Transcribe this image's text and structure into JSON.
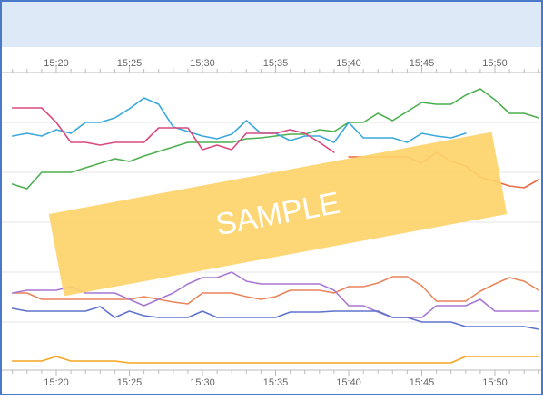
{
  "chart_data": {
    "type": "line",
    "title": "",
    "xlabel": "",
    "ylabel": "",
    "x_tick_labels": [
      "15:20",
      "15:25",
      "15:30",
      "15:35",
      "15:40",
      "15:45",
      "15:50"
    ],
    "x_range": [
      "15:17",
      "15:53"
    ],
    "grid": true,
    "legend": "none",
    "watermark": {
      "text": "SAMPLE",
      "color": "#fdd36a"
    },
    "colors": {
      "header_band": "#dde9f6",
      "frame": "#4a79c9",
      "grid": "#e6e6e6",
      "axis": "#bbbbbb",
      "tick_text": "#666666"
    },
    "series": [
      {
        "color": "#4caf50",
        "points": [
          [
            "15:17",
            203
          ],
          [
            "15:18",
            208
          ],
          [
            "15:19",
            190
          ],
          [
            "15:20",
            190
          ],
          [
            "15:21",
            190
          ],
          [
            "15:22",
            185
          ],
          [
            "15:23",
            180
          ],
          [
            "15:24",
            175
          ],
          [
            "15:25",
            178
          ],
          [
            "15:26",
            172
          ],
          [
            "15:27",
            167
          ],
          [
            "15:28",
            162
          ],
          [
            "15:29",
            157
          ],
          [
            "15:30",
            157
          ],
          [
            "15:31",
            157
          ],
          [
            "15:32",
            157
          ],
          [
            "15:33",
            153
          ],
          [
            "15:34",
            152
          ],
          [
            "15:35",
            150
          ],
          [
            "15:36",
            148
          ],
          [
            "15:37",
            148
          ],
          [
            "15:38",
            143
          ],
          [
            "15:39",
            145
          ],
          [
            "15:40",
            135
          ],
          [
            "15:41",
            135
          ],
          [
            "15:42",
            125
          ],
          [
            "15:43",
            133
          ],
          [
            "15:44",
            123
          ],
          [
            "15:45",
            113
          ],
          [
            "15:46",
            115
          ],
          [
            "15:47",
            115
          ],
          [
            "15:48",
            105
          ],
          [
            "15:49",
            98
          ],
          [
            "15:50",
            110
          ],
          [
            "15:51",
            125
          ],
          [
            "15:52",
            125
          ],
          [
            "15:53",
            130
          ]
        ]
      },
      {
        "color": "#3aa8dc",
        "points": [
          [
            "15:17",
            150
          ],
          [
            "15:18",
            147
          ],
          [
            "15:19",
            150
          ],
          [
            "15:20",
            143
          ],
          [
            "15:21",
            147
          ],
          [
            "15:22",
            135
          ],
          [
            "15:23",
            135
          ],
          [
            "15:24",
            130
          ],
          [
            "15:25",
            120
          ],
          [
            "15:26",
            108
          ],
          [
            "15:27",
            115
          ],
          [
            "15:28",
            140
          ],
          [
            "15:29",
            145
          ],
          [
            "15:30",
            150
          ],
          [
            "15:31",
            153
          ],
          [
            "15:32",
            148
          ],
          [
            "15:33",
            133
          ],
          [
            "15:34",
            147
          ],
          [
            "15:35",
            147
          ],
          [
            "15:36",
            155
          ],
          [
            "15:37",
            150
          ],
          [
            "15:38",
            150
          ],
          [
            "15:39",
            157
          ],
          [
            "15:40",
            135
          ],
          [
            "15:41",
            152
          ],
          [
            "15:42",
            152
          ],
          [
            "15:43",
            152
          ],
          [
            "15:44",
            157
          ],
          [
            "15:45",
            147
          ],
          [
            "15:46",
            150
          ],
          [
            "15:47",
            152
          ],
          [
            "15:48",
            147
          ]
        ]
      },
      {
        "color": "#d94a80",
        "points": [
          [
            "15:17",
            119
          ],
          [
            "15:18",
            119
          ],
          [
            "15:19",
            119
          ],
          [
            "15:20",
            135
          ],
          [
            "15:21",
            157
          ],
          [
            "15:22",
            157
          ],
          [
            "15:23",
            160
          ],
          [
            "15:24",
            157
          ],
          [
            "15:25",
            157
          ],
          [
            "15:26",
            157
          ],
          [
            "15:27",
            141
          ],
          [
            "15:28",
            141
          ],
          [
            "15:29",
            141
          ],
          [
            "15:30",
            165
          ],
          [
            "15:31",
            160
          ],
          [
            "15:32",
            165
          ],
          [
            "15:33",
            147
          ],
          [
            "15:34",
            147
          ],
          [
            "15:35",
            147
          ],
          [
            "15:36",
            143
          ],
          [
            "15:37",
            147
          ],
          [
            "15:38",
            157
          ],
          [
            "15:39",
            168
          ]
        ]
      },
      {
        "color": "#e86a46",
        "points": [
          [
            "15:40",
            173
          ],
          [
            "15:41",
            173
          ],
          [
            "15:42",
            173
          ],
          [
            "15:43",
            173
          ],
          [
            "15:44",
            173
          ],
          [
            "15:45",
            180
          ],
          [
            "15:46",
            168
          ],
          [
            "15:47",
            178
          ],
          [
            "15:48",
            183
          ],
          [
            "15:49",
            195
          ],
          [
            "15:50",
            200
          ],
          [
            "15:51",
            205
          ],
          [
            "15:52",
            207
          ],
          [
            "15:53",
            198
          ]
        ]
      },
      {
        "color": "#e8845a",
        "points": [
          [
            "15:17",
            323
          ],
          [
            "15:18",
            323
          ],
          [
            "15:19",
            330
          ],
          [
            "15:20",
            330
          ],
          [
            "15:21",
            330
          ],
          [
            "15:22",
            330
          ],
          [
            "15:23",
            330
          ],
          [
            "15:24",
            330
          ],
          [
            "15:25",
            330
          ],
          [
            "15:26",
            327
          ],
          [
            "15:27",
            330
          ],
          [
            "15:28",
            333
          ],
          [
            "15:29",
            335
          ],
          [
            "15:30",
            323
          ],
          [
            "15:31",
            323
          ],
          [
            "15:32",
            323
          ],
          [
            "15:33",
            327
          ],
          [
            "15:34",
            330
          ],
          [
            "15:35",
            327
          ],
          [
            "15:36",
            320
          ],
          [
            "15:37",
            320
          ],
          [
            "15:38",
            320
          ],
          [
            "15:39",
            323
          ],
          [
            "15:40",
            316
          ],
          [
            "15:41",
            316
          ],
          [
            "15:42",
            312
          ],
          [
            "15:43",
            305
          ],
          [
            "15:44",
            305
          ],
          [
            "15:45",
            315
          ],
          [
            "15:46",
            332
          ],
          [
            "15:47",
            332
          ],
          [
            "15:48",
            332
          ],
          [
            "15:49",
            321
          ],
          [
            "15:50",
            313
          ],
          [
            "15:51",
            306
          ],
          [
            "15:52",
            310
          ],
          [
            "15:53",
            320
          ]
        ]
      },
      {
        "color": "#a777d2",
        "points": [
          [
            "15:17",
            323
          ],
          [
            "15:18",
            320
          ],
          [
            "15:19",
            320
          ],
          [
            "15:20",
            320
          ],
          [
            "15:21",
            316
          ],
          [
            "15:22",
            323
          ],
          [
            "15:23",
            323
          ],
          [
            "15:24",
            323
          ],
          [
            "15:25",
            330
          ],
          [
            "15:26",
            337
          ],
          [
            "15:27",
            330
          ],
          [
            "15:28",
            323
          ],
          [
            "15:29",
            313
          ],
          [
            "15:30",
            306
          ],
          [
            "15:31",
            306
          ],
          [
            "15:32",
            300
          ],
          [
            "15:33",
            310
          ],
          [
            "15:34",
            313
          ],
          [
            "15:35",
            313
          ],
          [
            "15:36",
            313
          ],
          [
            "15:37",
            313
          ],
          [
            "15:38",
            313
          ],
          [
            "15:39",
            320
          ],
          [
            "15:40",
            337
          ],
          [
            "15:41",
            337
          ],
          [
            "15:42",
            344
          ],
          [
            "15:43",
            350
          ],
          [
            "15:44",
            350
          ],
          [
            "15:45",
            350
          ],
          [
            "15:46",
            337
          ],
          [
            "15:47",
            337
          ],
          [
            "15:48",
            337
          ],
          [
            "15:49",
            330
          ],
          [
            "15:50",
            343
          ],
          [
            "15:51",
            343
          ],
          [
            "15:52",
            343
          ],
          [
            "15:53",
            343
          ]
        ]
      },
      {
        "color": "#5f73cc",
        "points": [
          [
            "15:17",
            340
          ],
          [
            "15:18",
            343
          ],
          [
            "15:19",
            343
          ],
          [
            "15:20",
            343
          ],
          [
            "15:21",
            343
          ],
          [
            "15:22",
            343
          ],
          [
            "15:23",
            338
          ],
          [
            "15:24",
            350
          ],
          [
            "15:25",
            343
          ],
          [
            "15:26",
            348
          ],
          [
            "15:27",
            350
          ],
          [
            "15:28",
            350
          ],
          [
            "15:29",
            350
          ],
          [
            "15:30",
            343
          ],
          [
            "15:31",
            350
          ],
          [
            "15:32",
            350
          ],
          [
            "15:33",
            350
          ],
          [
            "15:34",
            350
          ],
          [
            "15:35",
            350
          ],
          [
            "15:36",
            344
          ],
          [
            "15:37",
            344
          ],
          [
            "15:38",
            344
          ],
          [
            "15:39",
            343
          ],
          [
            "15:40",
            343
          ],
          [
            "15:41",
            343
          ],
          [
            "15:42",
            343
          ],
          [
            "15:43",
            350
          ],
          [
            "15:44",
            350
          ],
          [
            "15:45",
            355
          ],
          [
            "15:46",
            355
          ],
          [
            "15:47",
            355
          ],
          [
            "15:48",
            360
          ],
          [
            "15:49",
            360
          ],
          [
            "15:50",
            360
          ],
          [
            "15:51",
            360
          ],
          [
            "15:52",
            360
          ],
          [
            "15:53",
            363
          ]
        ]
      },
      {
        "color": "#f5a623",
        "points": [
          [
            "15:17",
            398
          ],
          [
            "15:18",
            398
          ],
          [
            "15:19",
            398
          ],
          [
            "15:20",
            393
          ],
          [
            "15:21",
            398
          ],
          [
            "15:22",
            398
          ],
          [
            "15:23",
            398
          ],
          [
            "15:24",
            398
          ],
          [
            "15:25",
            400
          ],
          [
            "15:26",
            400
          ],
          [
            "15:27",
            400
          ],
          [
            "15:28",
            400
          ],
          [
            "15:29",
            400
          ],
          [
            "15:30",
            400
          ],
          [
            "15:31",
            400
          ],
          [
            "15:32",
            400
          ],
          [
            "15:33",
            400
          ],
          [
            "15:34",
            400
          ],
          [
            "15:35",
            400
          ],
          [
            "15:36",
            400
          ],
          [
            "15:37",
            400
          ],
          [
            "15:38",
            400
          ],
          [
            "15:39",
            400
          ],
          [
            "15:40",
            400
          ],
          [
            "15:41",
            400
          ],
          [
            "15:42",
            400
          ],
          [
            "15:43",
            400
          ],
          [
            "15:44",
            400
          ],
          [
            "15:45",
            400
          ],
          [
            "15:46",
            400
          ],
          [
            "15:47",
            400
          ],
          [
            "15:48",
            393
          ],
          [
            "15:49",
            393
          ],
          [
            "15:50",
            393
          ],
          [
            "15:51",
            393
          ],
          [
            "15:52",
            393
          ],
          [
            "15:53",
            393
          ]
        ]
      }
    ]
  }
}
